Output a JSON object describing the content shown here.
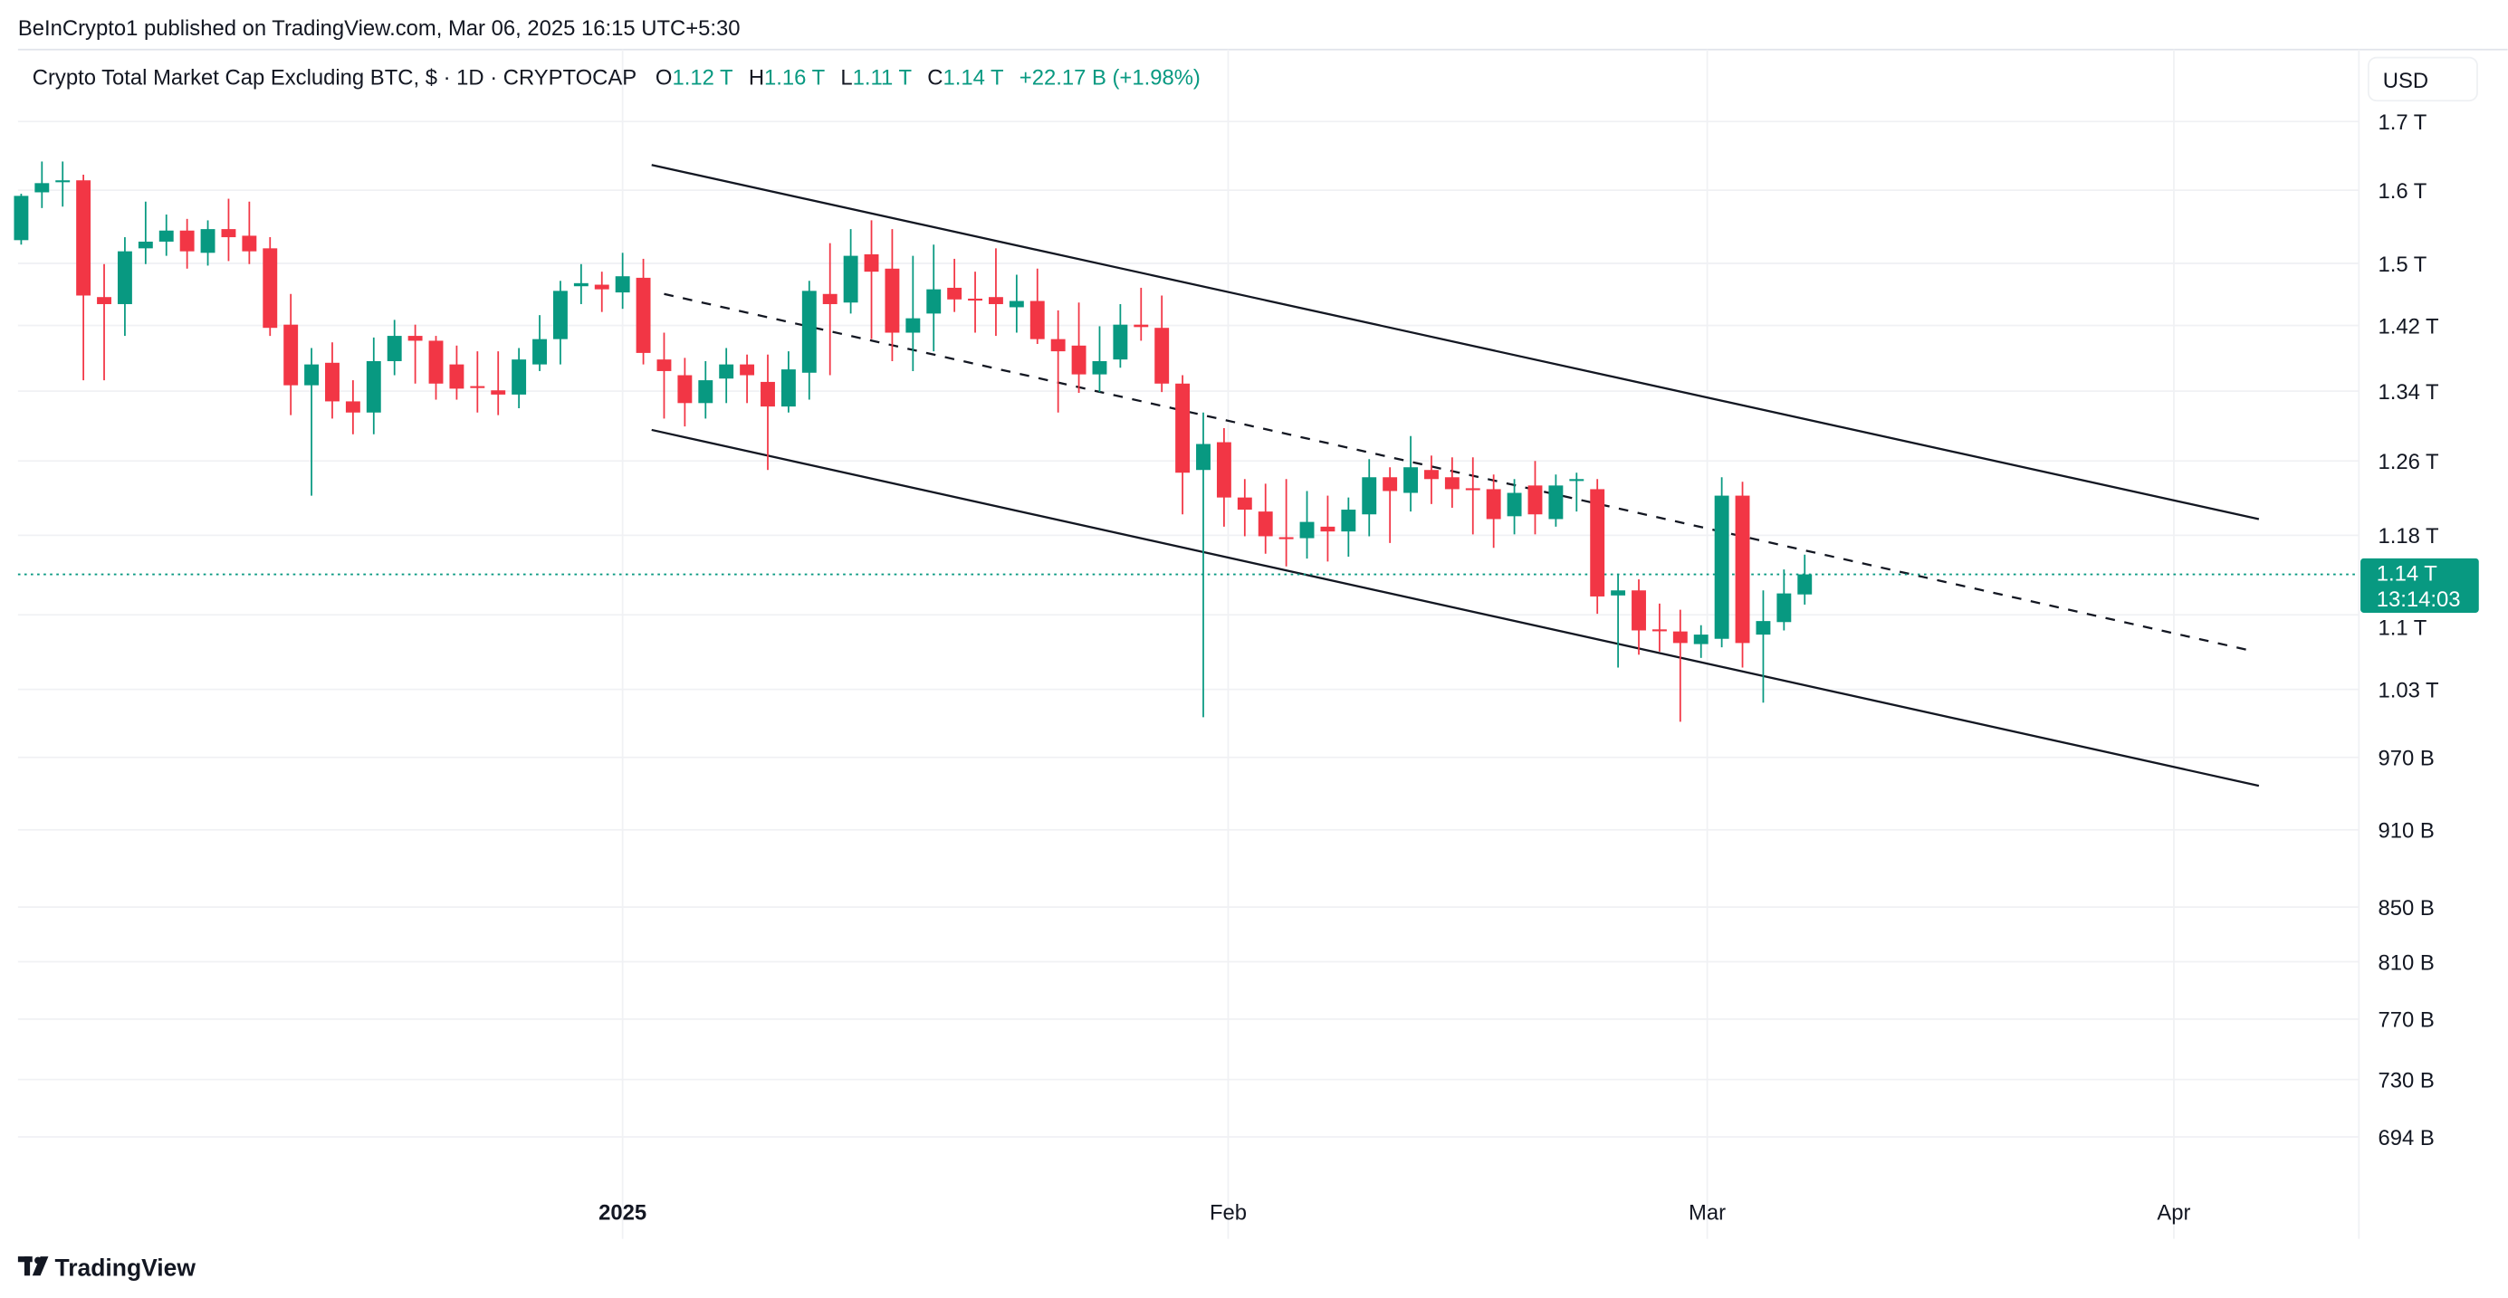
{
  "header": {
    "published": "BeInCrypto1 published on TradingView.com, Mar 06, 2025 16:15 UTC+5:30",
    "symbol_title": "Crypto Total Market Cap Excluding BTC, $ · 1D · CRYPTOCAP",
    "ohlc": {
      "o_label": "O",
      "o_value": "1.12 T",
      "h_label": "H",
      "h_value": "1.16 T",
      "l_label": "L",
      "l_value": "1.11 T",
      "c_label": "C",
      "c_value": "1.14 T",
      "change": "+22.17 B (+1.98%)"
    }
  },
  "currency_button": "USD",
  "footer": {
    "logo_text": "TradingView"
  },
  "colors": {
    "up": "#089981",
    "down": "#f23645",
    "text": "#131722",
    "grid": "#f0f1f4"
  },
  "last_price": {
    "value": 1.14,
    "label": "1.14 T",
    "countdown": "13:14:03"
  },
  "chart_data": {
    "type": "candlestick",
    "title": "Crypto Total Market Cap Excluding BTC, $ · 1D · CRYPTOCAP",
    "scale": "log",
    "ylim": [
      0.68,
      1.76
    ],
    "xlim": [
      -0.5,
      113
    ],
    "y_ticks": [
      {
        "value": 1.7,
        "label": "1.7 T"
      },
      {
        "value": 1.6,
        "label": "1.6 T"
      },
      {
        "value": 1.5,
        "label": "1.5 T"
      },
      {
        "value": 1.42,
        "label": "1.42 T"
      },
      {
        "value": 1.34,
        "label": "1.34 T"
      },
      {
        "value": 1.26,
        "label": "1.26 T"
      },
      {
        "value": 1.18,
        "label": "1.18 T"
      },
      {
        "value": 1.1,
        "label": "1.1 T"
      },
      {
        "value": 1.03,
        "label": "1.03 T"
      },
      {
        "value": 0.97,
        "label": "970 B"
      },
      {
        "value": 0.91,
        "label": "910 B"
      },
      {
        "value": 0.85,
        "label": "850 B"
      },
      {
        "value": 0.81,
        "label": "810 B"
      },
      {
        "value": 0.77,
        "label": "770 B"
      },
      {
        "value": 0.73,
        "label": "730 B"
      },
      {
        "value": 0.694,
        "label": "694 B"
      }
    ],
    "x_ticks": [
      {
        "bar": 29,
        "label": "2025",
        "bold": true
      },
      {
        "bar": 58.2,
        "label": "Feb",
        "bold": false
      },
      {
        "bar": 81.3,
        "label": "Mar",
        "bold": false
      },
      {
        "bar": 103.8,
        "label": "Apr",
        "bold": false
      }
    ],
    "ohlc_unit": "T",
    "ohlc": [
      [
        1.531,
        1.595,
        1.525,
        1.592
      ],
      [
        1.597,
        1.641,
        1.575,
        1.61
      ],
      [
        1.612,
        1.641,
        1.577,
        1.614
      ],
      [
        1.614,
        1.622,
        1.353,
        1.458
      ],
      [
        1.456,
        1.499,
        1.353,
        1.447
      ],
      [
        1.447,
        1.535,
        1.407,
        1.516
      ],
      [
        1.52,
        1.584,
        1.499,
        1.529
      ],
      [
        1.529,
        1.566,
        1.51,
        1.544
      ],
      [
        1.544,
        1.56,
        1.493,
        1.516
      ],
      [
        1.514,
        1.558,
        1.497,
        1.546
      ],
      [
        1.546,
        1.588,
        1.503,
        1.535
      ],
      [
        1.537,
        1.584,
        1.499,
        1.516
      ],
      [
        1.52,
        1.535,
        1.407,
        1.417
      ],
      [
        1.421,
        1.46,
        1.312,
        1.347
      ],
      [
        1.347,
        1.392,
        1.222,
        1.372
      ],
      [
        1.374,
        1.399,
        1.308,
        1.328
      ],
      [
        1.328,
        1.353,
        1.29,
        1.315
      ],
      [
        1.315,
        1.405,
        1.29,
        1.376
      ],
      [
        1.376,
        1.427,
        1.359,
        1.407
      ],
      [
        1.407,
        1.421,
        1.349,
        1.401
      ],
      [
        1.401,
        1.407,
        1.33,
        1.349
      ],
      [
        1.372,
        1.395,
        1.33,
        1.343
      ],
      [
        1.346,
        1.388,
        1.315,
        1.345
      ],
      [
        1.341,
        1.388,
        1.312,
        1.336
      ],
      [
        1.336,
        1.392,
        1.32,
        1.378
      ],
      [
        1.372,
        1.433,
        1.364,
        1.403
      ],
      [
        1.403,
        1.477,
        1.372,
        1.464
      ],
      [
        1.47,
        1.499,
        1.447,
        1.474
      ],
      [
        1.472,
        1.489,
        1.437,
        1.466
      ],
      [
        1.462,
        1.514,
        1.441,
        1.483
      ],
      [
        1.481,
        1.506,
        1.372,
        1.386
      ],
      [
        1.378,
        1.411,
        1.308,
        1.364
      ],
      [
        1.359,
        1.38,
        1.299,
        1.326
      ],
      [
        1.326,
        1.376,
        1.308,
        1.353
      ],
      [
        1.355,
        1.392,
        1.326,
        1.372
      ],
      [
        1.372,
        1.384,
        1.326,
        1.359
      ],
      [
        1.351,
        1.384,
        1.25,
        1.322
      ],
      [
        1.322,
        1.388,
        1.315,
        1.366
      ],
      [
        1.362,
        1.477,
        1.33,
        1.464
      ],
      [
        1.46,
        1.527,
        1.359,
        1.447
      ],
      [
        1.449,
        1.546,
        1.435,
        1.51
      ],
      [
        1.512,
        1.558,
        1.403,
        1.489
      ],
      [
        1.493,
        1.546,
        1.376,
        1.411
      ],
      [
        1.411,
        1.51,
        1.364,
        1.429
      ],
      [
        1.435,
        1.525,
        1.388,
        1.466
      ],
      [
        1.468,
        1.506,
        1.437,
        1.453
      ],
      [
        1.454,
        1.489,
        1.411,
        1.453
      ],
      [
        1.456,
        1.52,
        1.407,
        1.447
      ],
      [
        1.443,
        1.485,
        1.411,
        1.451
      ],
      [
        1.451,
        1.493,
        1.397,
        1.403
      ],
      [
        1.403,
        1.439,
        1.315,
        1.388
      ],
      [
        1.395,
        1.449,
        1.338,
        1.36
      ],
      [
        1.36,
        1.419,
        1.339,
        1.376
      ],
      [
        1.378,
        1.447,
        1.368,
        1.421
      ],
      [
        1.421,
        1.468,
        1.401,
        1.418
      ],
      [
        1.417,
        1.458,
        1.339,
        1.349
      ],
      [
        1.349,
        1.359,
        1.202,
        1.247
      ],
      [
        1.25,
        1.315,
        1.005,
        1.279
      ],
      [
        1.281,
        1.297,
        1.189,
        1.22
      ],
      [
        1.22,
        1.24,
        1.179,
        1.207
      ],
      [
        1.205,
        1.235,
        1.161,
        1.179
      ],
      [
        1.178,
        1.24,
        1.148,
        1.177
      ],
      [
        1.177,
        1.227,
        1.156,
        1.194
      ],
      [
        1.189,
        1.222,
        1.153,
        1.184
      ],
      [
        1.184,
        1.22,
        1.158,
        1.207
      ],
      [
        1.202,
        1.262,
        1.179,
        1.242
      ],
      [
        1.242,
        1.253,
        1.172,
        1.227
      ],
      [
        1.225,
        1.288,
        1.205,
        1.253
      ],
      [
        1.25,
        1.266,
        1.213,
        1.24
      ],
      [
        1.242,
        1.264,
        1.209,
        1.229
      ],
      [
        1.23,
        1.264,
        1.181,
        1.229
      ],
      [
        1.229,
        1.245,
        1.167,
        1.197
      ],
      [
        1.2,
        1.24,
        1.181,
        1.225
      ],
      [
        1.233,
        1.26,
        1.181,
        1.202
      ],
      [
        1.197,
        1.245,
        1.189,
        1.233
      ],
      [
        1.238,
        1.247,
        1.205,
        1.24
      ],
      [
        1.229,
        1.24,
        1.101,
        1.118
      ],
      [
        1.119,
        1.14,
        1.05,
        1.124
      ],
      [
        1.124,
        1.135,
        1.062,
        1.085
      ],
      [
        1.086,
        1.111,
        1.065,
        1.085
      ],
      [
        1.084,
        1.105,
        1.001,
        1.073
      ],
      [
        1.072,
        1.09,
        1.059,
        1.081
      ],
      [
        1.077,
        1.242,
        1.069,
        1.222
      ],
      [
        1.222,
        1.237,
        1.05,
        1.073
      ],
      [
        1.081,
        1.124,
        1.018,
        1.094
      ],
      [
        1.093,
        1.145,
        1.085,
        1.121
      ],
      [
        1.12,
        1.16,
        1.11,
        1.14
      ]
    ],
    "trendlines": [
      {
        "name": "channel-upper",
        "style": "solid",
        "from": [
          30.4,
          1.636
        ],
        "to": [
          107.9,
          1.197
        ]
      },
      {
        "name": "channel-mid",
        "style": "dashed",
        "from": [
          31,
          1.46
        ],
        "to": [
          107.7,
          1.065
        ]
      },
      {
        "name": "channel-lower",
        "style": "solid",
        "from": [
          30.4,
          1.295
        ],
        "to": [
          107.9,
          0.946
        ]
      }
    ],
    "grid": true
  }
}
